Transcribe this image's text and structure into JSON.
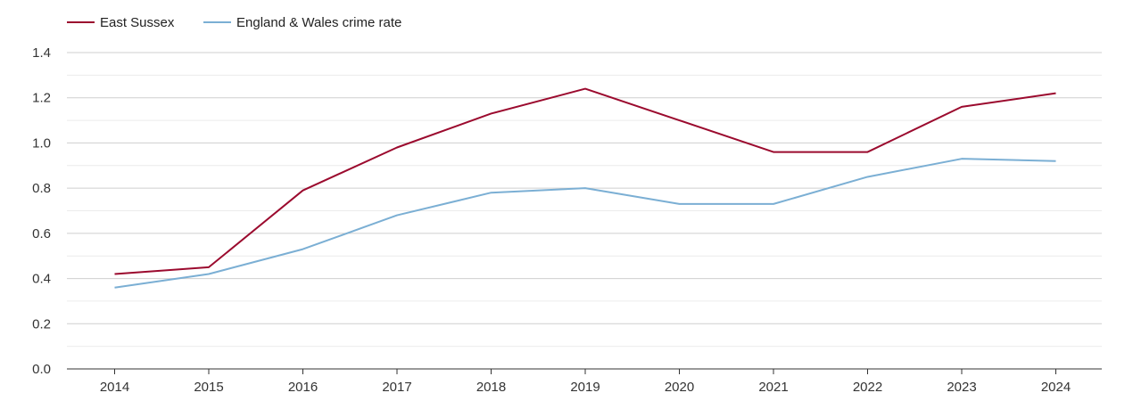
{
  "chart_data": {
    "type": "line",
    "title": "",
    "xlabel": "",
    "ylabel": "",
    "categories": [
      "2014",
      "2015",
      "2016",
      "2017",
      "2018",
      "2019",
      "2020",
      "2021",
      "2022",
      "2023",
      "2024"
    ],
    "ylim": [
      0,
      1.4
    ],
    "yticks": [
      "0.0",
      "0.2",
      "0.4",
      "0.6",
      "0.8",
      "1.0",
      "1.2",
      "1.4"
    ],
    "grid": true,
    "legend_position": "top-left",
    "series": [
      {
        "name": "East Sussex",
        "color": "#9b0a2e",
        "values": [
          0.42,
          0.45,
          0.79,
          0.98,
          1.13,
          1.24,
          1.1,
          0.96,
          0.96,
          1.16,
          1.22
        ]
      },
      {
        "name": "England & Wales crime rate",
        "color": "#7bafd4",
        "values": [
          0.36,
          0.42,
          0.53,
          0.68,
          0.78,
          0.8,
          0.73,
          0.73,
          0.85,
          0.93,
          0.92
        ]
      }
    ]
  }
}
